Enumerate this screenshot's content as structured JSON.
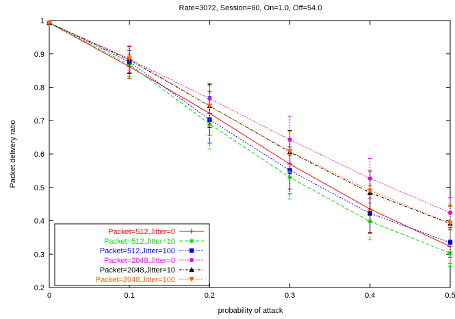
{
  "chart_data": {
    "type": "line",
    "title": "Rate=3072, Session=60, On=1.0, Off=54.0",
    "xlabel": "probability of attack",
    "ylabel": "Packet delivery ratio",
    "x": [
      0,
      0.1,
      0.2,
      0.3,
      0.4,
      0.5
    ],
    "xlim": [
      0,
      0.5
    ],
    "ylim": [
      0.2,
      1.0
    ],
    "xticks": [
      "0",
      "0.1",
      "0.2",
      "0.3",
      "0.4",
      "0.5"
    ],
    "yticks": [
      "0.2",
      "0.3",
      "0.4",
      "0.5",
      "0.6",
      "0.7",
      "0.8",
      "0.9",
      "1"
    ],
    "grid": false,
    "legend_position": "bottom-left",
    "series": [
      {
        "name": "Packet=512,Jitter=0",
        "color": "#ff0000",
        "dash": "solid",
        "marker": "plus",
        "values": [
          0.993,
          0.862,
          0.722,
          0.57,
          0.435,
          0.323
        ],
        "errors": [
          0.003,
          0.035,
          0.065,
          0.075,
          0.07,
          0.05
        ]
      },
      {
        "name": "Packet=512,Jitter=10",
        "color": "#00dd00",
        "dash": "dashed",
        "marker": "asterisk",
        "values": [
          0.992,
          0.868,
          0.69,
          0.53,
          0.398,
          0.303
        ],
        "errors": [
          0.003,
          0.035,
          0.075,
          0.065,
          0.055,
          0.04
        ]
      },
      {
        "name": "Packet=512,Jitter=100",
        "color": "#0000ff",
        "dash": "dotted",
        "marker": "square",
        "values": [
          0.993,
          0.876,
          0.703,
          0.551,
          0.422,
          0.335
        ],
        "errors": [
          0.003,
          0.035,
          0.07,
          0.07,
          0.06,
          0.045
        ]
      },
      {
        "name": "Packet=2048,Jitter=0",
        "color": "#ff00ff",
        "dash": "dotted",
        "marker": "circle",
        "values": [
          0.993,
          0.884,
          0.766,
          0.643,
          0.527,
          0.424
        ],
        "errors": [
          0.003,
          0.04,
          0.045,
          0.07,
          0.06,
          0.045
        ]
      },
      {
        "name": "Packet=2048,Jitter=10",
        "color": "#000000",
        "dash": "dashdot",
        "marker": "triangle",
        "values": [
          0.993,
          0.882,
          0.744,
          0.606,
          0.484,
          0.392
        ],
        "errors": [
          0.003,
          0.04,
          0.065,
          0.065,
          0.065,
          0.055
        ]
      },
      {
        "name": "Packet=2048,Jitter=100",
        "color": "#ff6600",
        "dash": "dotted",
        "marker": "triangle-down",
        "values": [
          0.993,
          0.886,
          0.744,
          0.608,
          0.49,
          0.393
        ],
        "errors": [
          0.003,
          0.035,
          0.06,
          0.06,
          0.06,
          0.05
        ]
      }
    ]
  }
}
